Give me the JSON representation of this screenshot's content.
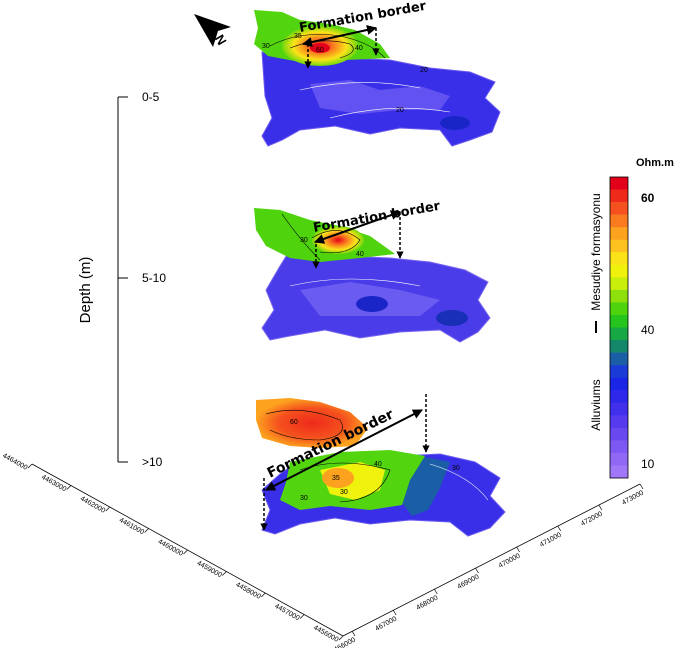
{
  "depth_axis": {
    "title": "Depth (m)",
    "levels": [
      "0-5",
      "5-10",
      ">10"
    ]
  },
  "annotations": {
    "formation_border": "Formation border"
  },
  "north_arrow": {
    "label": "N"
  },
  "color_scale": {
    "unit": "Ohm.m",
    "ticks": [
      "60",
      "40",
      "10"
    ],
    "formation_upper": "Mesudiye formasyonu",
    "formation_lower": "Alluviums",
    "colors": [
      "#e3001b",
      "#ee2a1a",
      "#f5511e",
      "#fa7a1f",
      "#fca21f",
      "#fdc21f",
      "#fbe319",
      "#eef20c",
      "#c8ee0c",
      "#8ee00c",
      "#4fd30c",
      "#26c51d",
      "#16a845",
      "#14876b",
      "#1a5fa6",
      "#1a3bd6",
      "#1a25e6",
      "#2d28ea",
      "#4030ec",
      "#553aee",
      "#6a48f0",
      "#7e58f3",
      "#9068f5",
      "#a078f7"
    ]
  },
  "contour_labels": {
    "top": [
      "20",
      "30",
      "35",
      "40",
      "50",
      "60",
      "45",
      "40"
    ],
    "middle": [
      "40",
      "30",
      "40"
    ],
    "bottom": [
      "40",
      "60",
      "40",
      "30",
      "35",
      "30",
      "30",
      "30"
    ]
  },
  "x_axis": {
    "ticks": [
      "466000",
      "467000",
      "468000",
      "469000",
      "470000",
      "471000",
      "472000",
      "473000"
    ]
  },
  "y_axis": {
    "ticks": [
      "4456000",
      "4457000",
      "4458000",
      "4459000",
      "4460000",
      "4461000",
      "4462000",
      "4463000",
      "4464000"
    ]
  }
}
